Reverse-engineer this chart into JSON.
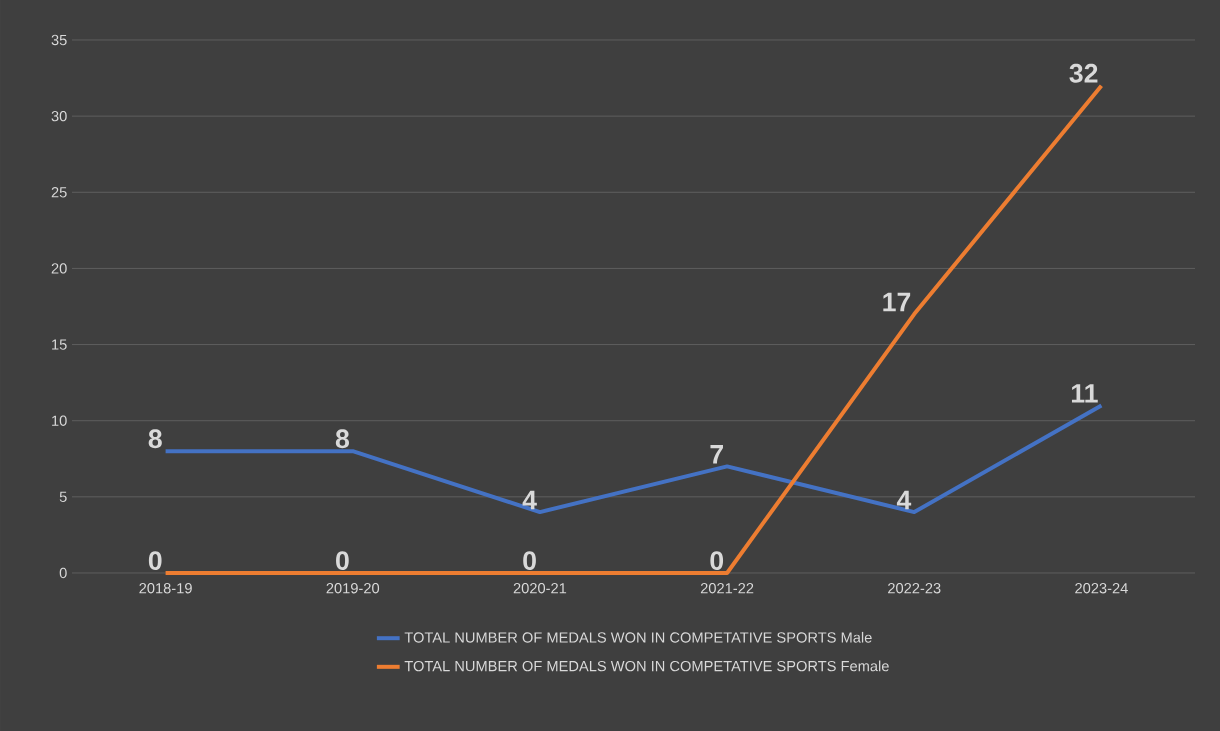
{
  "chart_data": {
    "type": "line",
    "categories": [
      "2018-19",
      "2019-20",
      "2020-21",
      "2021-22",
      "2022-23",
      "2023-24"
    ],
    "series": [
      {
        "name": "TOTAL NUMBER OF MEDALS WON IN COMPETATIVE SPORTS Male",
        "color": "#4472c4",
        "values": [
          8,
          8,
          4,
          7,
          4,
          11
        ]
      },
      {
        "name": "TOTAL NUMBER OF MEDALS WON IN COMPETATIVE SPORTS Female",
        "color": "#ed7d31",
        "values": [
          0,
          0,
          0,
          0,
          17,
          32
        ]
      }
    ],
    "ylim": [
      0,
      35
    ],
    "yticks": [
      0,
      5,
      10,
      15,
      20,
      25,
      30,
      35
    ],
    "grid": "y",
    "legend": "bottom",
    "data_labels": true
  }
}
